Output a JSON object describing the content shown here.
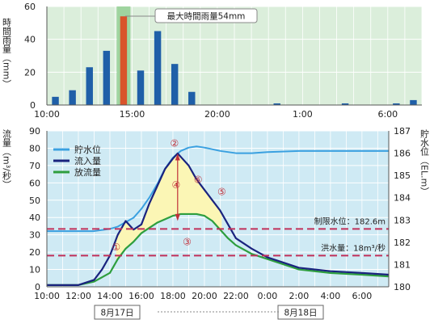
{
  "chart_data": [
    {
      "type": "bar",
      "ylabel": "時間雨量（mm）",
      "ylim": [
        0,
        60
      ],
      "yticks": [
        0,
        20,
        40,
        60
      ],
      "xtick_labels": [
        "10:00",
        "15:00",
        "20:00",
        "1:00",
        "6:00"
      ],
      "x": [
        "10:00",
        "11:00",
        "12:00",
        "13:00",
        "14:00",
        "15:00",
        "16:00",
        "17:00",
        "18:00",
        "19:00",
        "20:00",
        "21:00",
        "22:00",
        "23:00",
        "0:00",
        "1:00",
        "2:00",
        "3:00",
        "4:00",
        "5:00",
        "6:00",
        "7:00"
      ],
      "values": [
        5,
        9,
        23,
        33,
        54,
        21,
        45,
        25,
        8,
        0,
        0,
        0,
        0,
        1,
        0,
        0,
        0,
        1,
        0,
        0,
        1,
        3
      ],
      "highlight": {
        "x": "14:00",
        "color": "#d9542b",
        "annotation": "最大時間雨量54mm"
      },
      "colors": {
        "bar": "#1f5fa8",
        "background": "#dbeedb",
        "highlight_band": "#9fd49f"
      }
    },
    {
      "type": "line",
      "left_ylabel": "流量（m³/秒）",
      "right_ylabel": "貯水位（EL.m）",
      "ylim": [
        0,
        90
      ],
      "yticks": [
        0,
        10,
        20,
        30,
        40,
        50,
        60,
        70,
        80,
        90
      ],
      "y2lim": [
        180,
        187
      ],
      "y2ticks": [
        180,
        181,
        182,
        183,
        184,
        185,
        186,
        187
      ],
      "x_tick_labels": [
        "10:00",
        "12:00",
        "14:00",
        "16:00",
        "18:00",
        "20:00",
        "22:00",
        "0:00",
        "2:00",
        "4:00",
        "6:00"
      ],
      "date_labels": [
        "8月17日",
        "8月18日"
      ],
      "legend": [
        "貯水位",
        "流入量",
        "放流量"
      ],
      "legend_position": "top-left",
      "series": [
        {
          "name": "貯水位",
          "axis": "right",
          "color": "#3aa0e0",
          "x": [
            0,
            1,
            2,
            3,
            3.5,
            4,
            4.5,
            5,
            5.5,
            6,
            6.5,
            7,
            7.5,
            8,
            8.5,
            9,
            9.5,
            10,
            11,
            12,
            12.5,
            13,
            14,
            16,
            18,
            20,
            21.7
          ],
          "values": [
            182.5,
            182.5,
            182.5,
            182.5,
            182.55,
            182.6,
            182.7,
            182.9,
            183.1,
            183.5,
            184.0,
            184.6,
            185.3,
            185.8,
            186.1,
            186.25,
            186.3,
            186.25,
            186.1,
            186.0,
            186.0,
            186.0,
            186.05,
            186.1,
            186.1,
            186.1,
            186.1
          ]
        },
        {
          "name": "流入量",
          "axis": "left",
          "color": "#1a237e",
          "x": [
            0,
            2,
            3,
            3.5,
            4,
            4.5,
            5,
            5.5,
            6,
            6.5,
            7,
            7.5,
            8,
            8.3,
            8.6,
            9,
            9.5,
            10,
            10.5,
            11,
            11.5,
            12,
            13,
            14,
            15,
            16,
            18,
            20,
            21.7
          ],
          "values": [
            1,
            1,
            4,
            10,
            18,
            30,
            38,
            33,
            36,
            48,
            58,
            68,
            74,
            77,
            74,
            70,
            62,
            56,
            50,
            44,
            36,
            28,
            22,
            17,
            14,
            11,
            9,
            8,
            7
          ]
        },
        {
          "name": "放流量",
          "axis": "left",
          "color": "#2e9e3e",
          "x": [
            0,
            2,
            3,
            4,
            4.5,
            5,
            5.5,
            6,
            6.5,
            7,
            7.5,
            8,
            8.5,
            9,
            9.5,
            10,
            10.5,
            11,
            11.5,
            12,
            13,
            14,
            15,
            16,
            18,
            20,
            21.7
          ],
          "values": [
            1,
            1,
            3,
            8,
            16,
            22,
            26,
            31,
            34,
            37,
            39,
            41,
            42,
            42,
            42,
            41,
            38,
            33,
            28,
            24,
            19,
            16,
            13,
            10,
            8,
            7,
            6
          ]
        }
      ],
      "reference_lines": [
        {
          "label": "制限水位：182.6m",
          "axis": "right",
          "value": 182.6,
          "color": "#c0305a"
        },
        {
          "label": "洪水量：18m³/秒",
          "axis": "left",
          "value": 18,
          "color": "#c0305a"
        }
      ],
      "markers": [
        {
          "label": "①",
          "x": 4.4,
          "y": 21
        },
        {
          "label": "②",
          "x": 8.1,
          "y": 81
        },
        {
          "label": "③",
          "x": 8.9,
          "y": 24
        },
        {
          "label": "④",
          "x": 8.2,
          "y": 57
        },
        {
          "label": "⑤",
          "x": 11.1,
          "y": 53
        },
        {
          "label": "⑥",
          "x": 9.6,
          "y": 60
        }
      ],
      "colors": {
        "background": "#cfeaf4",
        "fill_between": "#fbf6b5"
      }
    }
  ]
}
